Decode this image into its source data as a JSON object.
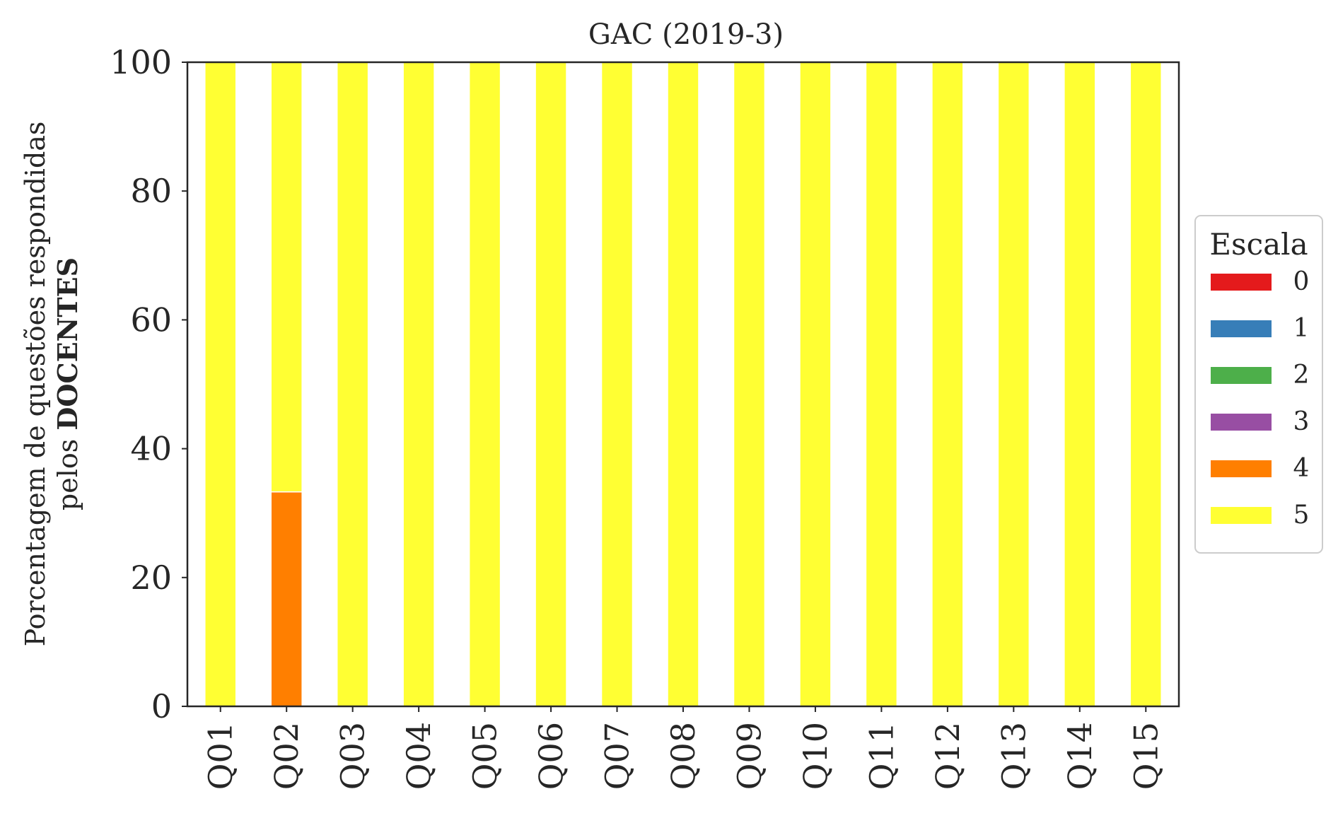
{
  "chart_data": {
    "type": "bar",
    "stacked": true,
    "title": "GAC (2019-3)",
    "ylabel_line1": "Porcentagem de questões respondidas",
    "ylabel_line2_prefix": "pelos",
    "ylabel_line2_bold": "DOCENTES",
    "xlabel": "",
    "ylim": [
      0,
      100
    ],
    "yticks": [
      0,
      20,
      40,
      60,
      80,
      100
    ],
    "grid": false,
    "legend_title": "Escala",
    "legend_placement": "center-right outside",
    "categories": [
      "Q01",
      "Q02",
      "Q03",
      "Q04",
      "Q05",
      "Q06",
      "Q07",
      "Q08",
      "Q09",
      "Q10",
      "Q11",
      "Q12",
      "Q13",
      "Q14",
      "Q15"
    ],
    "series": [
      {
        "name": "0",
        "color": "#e41a1c",
        "values": [
          0,
          0,
          0,
          0,
          0,
          0,
          0,
          0,
          0,
          0,
          0,
          0,
          0,
          0,
          0
        ]
      },
      {
        "name": "1",
        "color": "#377eb8",
        "values": [
          0,
          0,
          0,
          0,
          0,
          0,
          0,
          0,
          0,
          0,
          0,
          0,
          0,
          0,
          0
        ]
      },
      {
        "name": "2",
        "color": "#4daf4a",
        "values": [
          0,
          0,
          0,
          0,
          0,
          0,
          0,
          0,
          0,
          0,
          0,
          0,
          0,
          0,
          0
        ]
      },
      {
        "name": "3",
        "color": "#984ea3",
        "values": [
          0,
          0,
          0,
          0,
          0,
          0,
          0,
          0,
          0,
          0,
          0,
          0,
          0,
          0,
          0
        ]
      },
      {
        "name": "4",
        "color": "#ff7f00",
        "values": [
          0,
          33.3,
          0,
          0,
          0,
          0,
          0,
          0,
          0,
          0,
          0,
          0,
          0,
          0,
          0
        ]
      },
      {
        "name": "5",
        "color": "#ffff33",
        "values": [
          100,
          66.7,
          100,
          100,
          100,
          100,
          100,
          100,
          100,
          100,
          100,
          100,
          100,
          100,
          100
        ]
      }
    ]
  }
}
